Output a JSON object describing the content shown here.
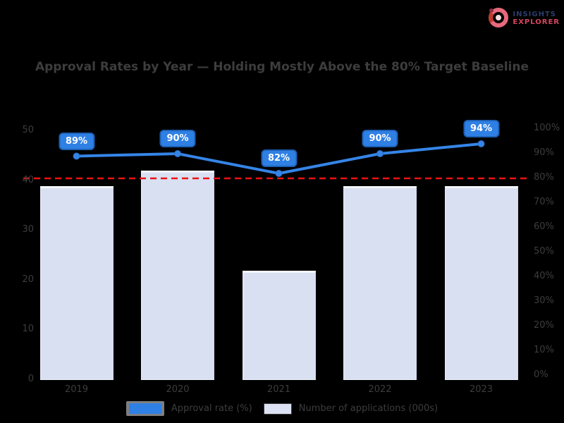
{
  "logo": {
    "line1": "INSIGHTS",
    "line2": "EXPLORER",
    "icon": "donut-globe-logo-icon",
    "line1_color": "#2c3e6b",
    "line2_color": "#d6455e",
    "icon_color": "#e05468"
  },
  "title": "Approval Rates by Year — Holding Mostly Above the 80% Target Baseline",
  "chart_data": {
    "type": "bar+line combo",
    "categories": [
      "2019",
      "2020",
      "2021",
      "2022",
      "2023"
    ],
    "series": [
      {
        "name": "Approval rate (%)",
        "type": "line",
        "axis": "right",
        "values": [
          89,
          90,
          82,
          90,
          94
        ],
        "point_labels": [
          "89%",
          "90%",
          "82%",
          "90%",
          "94%"
        ],
        "color": "#3585e8"
      },
      {
        "name": "Number of applications (000s)",
        "type": "bar",
        "axis": "left",
        "values": [
          39,
          42,
          22,
          39,
          39
        ],
        "color": "#d9e0f2"
      }
    ],
    "target_line": {
      "axis": "right",
      "value": 80,
      "color": "#ee1111",
      "style": "dashed"
    },
    "left_axis": {
      "range": [
        0,
        50
      ],
      "ticks": [
        0,
        10,
        20,
        30,
        40,
        50
      ]
    },
    "right_axis": {
      "range": [
        0,
        100
      ],
      "ticks": [
        0,
        10,
        20,
        30,
        40,
        50,
        60,
        70,
        80,
        90,
        100
      ],
      "format": "percent"
    },
    "grid": false,
    "legend_position": "bottom"
  },
  "legend": {
    "items": [
      {
        "label": "Approval rate (%)",
        "swatch_color": "#2f80e4",
        "selected": true
      },
      {
        "label": "Number of applications (000s)",
        "swatch_color": "#dce2f4",
        "selected": false
      }
    ]
  },
  "colors": {
    "background": "#000000",
    "text_muted": "#3d3d3d",
    "line_blue": "#3585e8",
    "point_label_fill": "#2f80e4",
    "point_label_border": "#1d5fb4",
    "bar_fill": "#d9e0f2",
    "target_red": "#ee1111"
  }
}
